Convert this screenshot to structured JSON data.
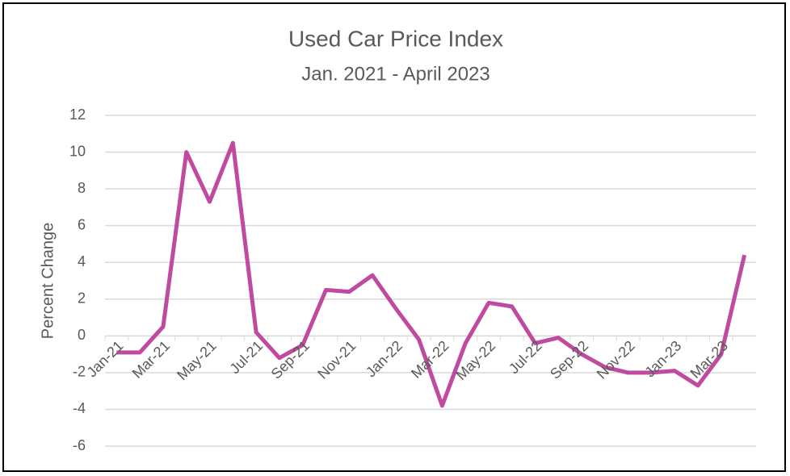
{
  "chart_data": {
    "type": "line",
    "title": "Used Car Price Index",
    "subtitle": "Jan. 2021 - April 2023",
    "y_label": "Percent Change",
    "categories": [
      "Jan-21",
      null,
      "Mar-21",
      null,
      "May-21",
      null,
      "Jul-21",
      null,
      "Sep-21",
      null,
      "Nov-21",
      null,
      "Jan-22",
      null,
      "Mar-22",
      null,
      "May-22",
      null,
      "Jul-22",
      null,
      "Sep-22",
      null,
      "Nov-22",
      null,
      "Jan-23",
      null,
      "Mar-23",
      null
    ],
    "series": [
      {
        "name": "Used Car Price Index",
        "color": "#bf4a9f",
        "values": [
          -0.9,
          -0.9,
          0.5,
          10.0,
          7.3,
          10.5,
          0.2,
          -1.2,
          -0.5,
          2.5,
          2.4,
          3.3,
          1.5,
          -0.2,
          -3.8,
          -0.4,
          1.8,
          1.6,
          -0.4,
          -0.1,
          -1.0,
          -1.7,
          -2.0,
          -2.0,
          -1.9,
          -2.7,
          -1.0,
          4.4
        ]
      }
    ],
    "ylim": [
      -6,
      12
    ],
    "yticks": [
      -6,
      -4,
      -2,
      0,
      2,
      4,
      6,
      8,
      10,
      12
    ],
    "grid": true
  }
}
